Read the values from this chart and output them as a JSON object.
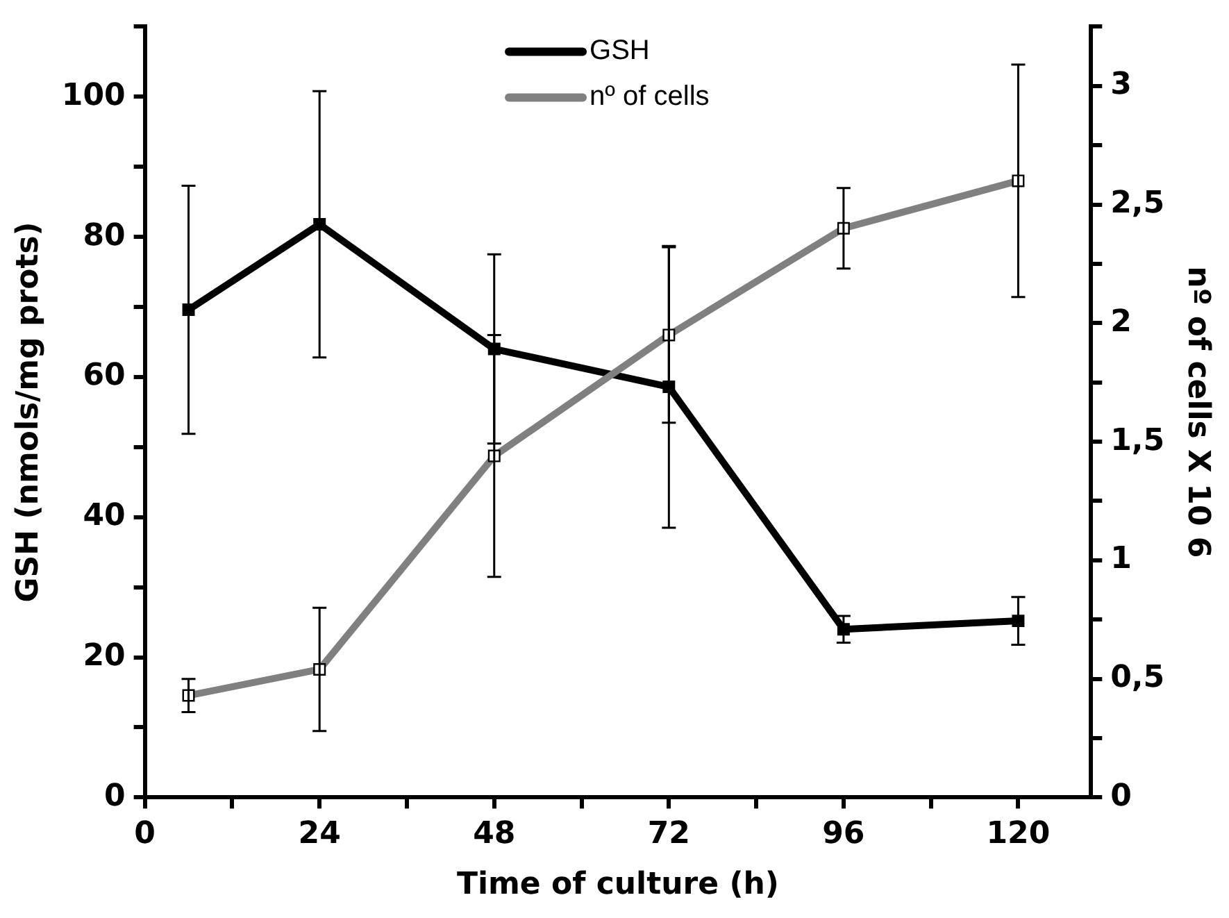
{
  "chart_data": {
    "type": "line",
    "xlabel": "Time of culture (h)",
    "ylabel": "GSH (nmols/mg prots)",
    "y2label": "nº of cells X 10 6",
    "x": [
      6,
      24,
      48,
      72,
      96,
      120
    ],
    "xlim": [
      0,
      130
    ],
    "xticks": [
      0,
      {
        "value": 12,
        "label": null
      },
      24,
      {
        "value": 36,
        "label": null
      },
      48,
      {
        "value": 60,
        "label": null
      },
      72,
      {
        "value": 84,
        "label": null
      },
      96,
      {
        "value": 108,
        "label": null
      },
      120
    ],
    "ylim": [
      0,
      110
    ],
    "yticks": [
      0,
      {
        "value": 10,
        "label": null
      },
      20,
      {
        "value": 30,
        "label": null
      },
      40,
      {
        "value": 50,
        "label": null
      },
      60,
      {
        "value": 70,
        "label": null
      },
      80,
      {
        "value": 90,
        "label": null
      },
      100,
      {
        "value": 110,
        "label": null
      }
    ],
    "y2lim": [
      0,
      3.25
    ],
    "y2ticks": [
      0,
      {
        "value": 0.25,
        "label": null
      },
      {
        "value": 0.5,
        "label": "0,5"
      },
      {
        "value": 0.75,
        "label": null
      },
      1,
      {
        "value": 1.25,
        "label": null
      },
      {
        "value": 1.5,
        "label": "1,5"
      },
      {
        "value": 1.75,
        "label": null
      },
      2,
      {
        "value": 2.25,
        "label": null
      },
      {
        "value": 2.5,
        "label": "2,5"
      },
      {
        "value": 2.75,
        "label": null
      },
      3,
      {
        "value": 3.25,
        "label": null
      }
    ],
    "series": [
      {
        "name": "GSH",
        "color": "#000000",
        "values": [
          69.6,
          81.8,
          64.0,
          58.6,
          24.0,
          25.2
        ],
        "errors": [
          17.7,
          19,
          13.5,
          20.1,
          1.9,
          3.4
        ]
      },
      {
        "name": "nº of cells",
        "color": "#808080",
        "axis": "y2",
        "values": [
          0.43,
          0.54,
          1.44,
          1.95,
          2.4,
          2.6
        ],
        "errors": [
          0.07,
          0.26,
          0.51,
          0.37,
          0.17,
          0.49
        ]
      }
    ],
    "grid": false,
    "legend": "top",
    "marker": "square",
    "line_style": "solid"
  }
}
